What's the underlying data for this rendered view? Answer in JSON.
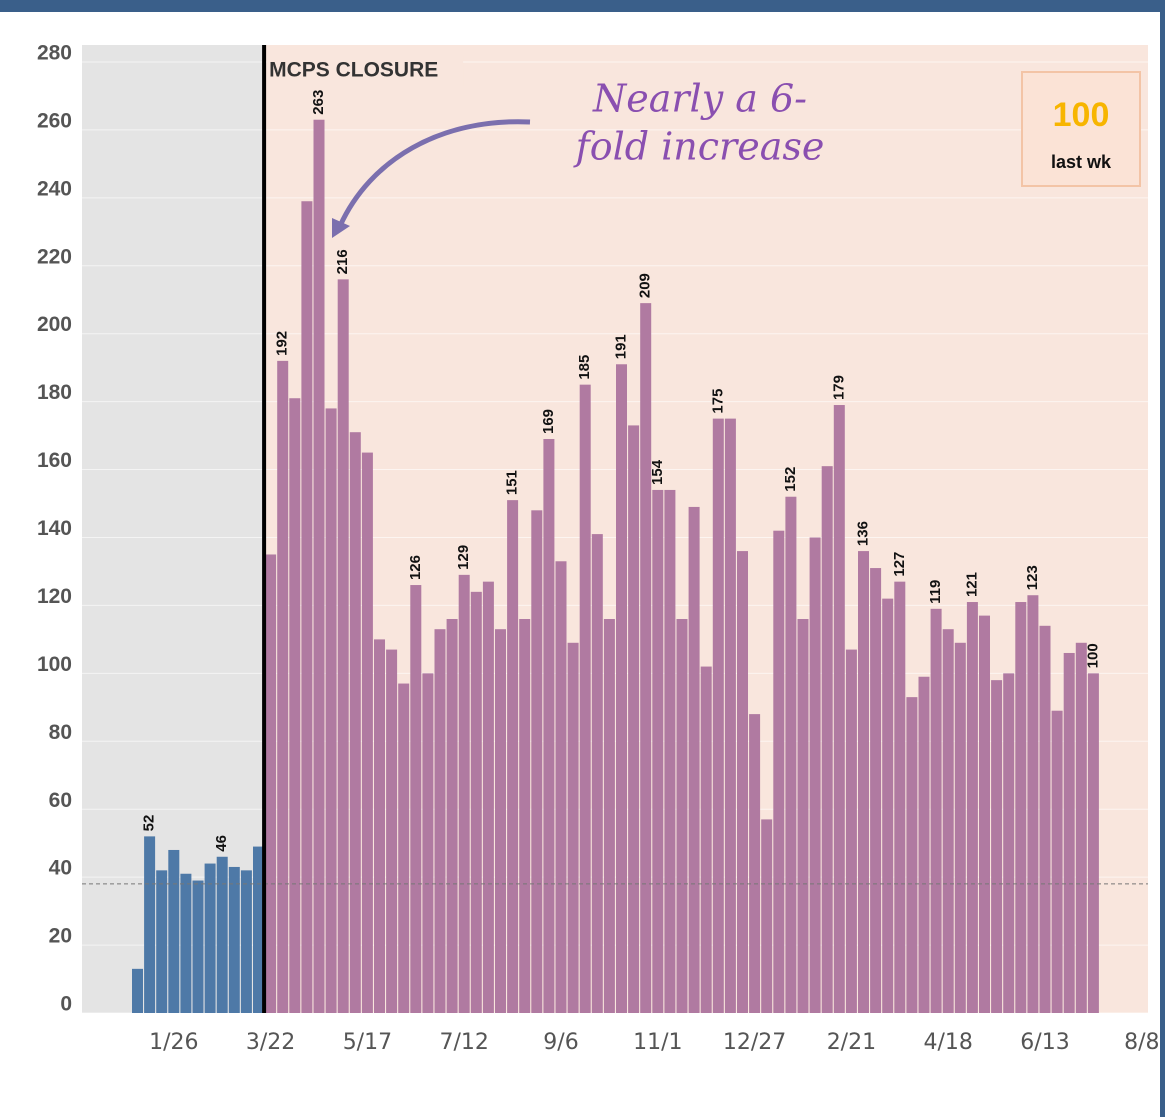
{
  "chart_data": {
    "type": "bar",
    "categories": [
      null,
      null,
      null,
      "1/26",
      null,
      null,
      null,
      null,
      null,
      null,
      null,
      "3/22",
      null,
      null,
      null,
      null,
      null,
      null,
      null,
      "5/17",
      null,
      null,
      null,
      null,
      null,
      null,
      null,
      "7/12",
      null,
      null,
      null,
      null,
      null,
      null,
      null,
      "9/6",
      null,
      null,
      null,
      null,
      null,
      null,
      null,
      "11/1",
      null,
      null,
      null,
      null,
      null,
      null,
      null,
      "12/27",
      null,
      null,
      null,
      null,
      null,
      null,
      null,
      "2/21",
      null,
      null,
      null,
      null,
      null,
      null,
      null,
      "4/18",
      null,
      null,
      null,
      null,
      null,
      null,
      null,
      "6/13",
      null,
      null,
      null,
      null,
      null,
      null,
      null,
      "8/8"
    ],
    "values": [
      13,
      52,
      42,
      48,
      41,
      39,
      44,
      46,
      43,
      42,
      49,
      135,
      192,
      181,
      239,
      263,
      178,
      216,
      171,
      165,
      110,
      107,
      97,
      126,
      100,
      113,
      116,
      129,
      124,
      127,
      113,
      151,
      116,
      148,
      169,
      133,
      109,
      185,
      141,
      116,
      191,
      173,
      209,
      154,
      154,
      116,
      149,
      102,
      175,
      175,
      136,
      88,
      57,
      142,
      152,
      116,
      140,
      161,
      179,
      107,
      136,
      131,
      122,
      127,
      93,
      99,
      119,
      113,
      109,
      121,
      117,
      98,
      100,
      121,
      123,
      114,
      89,
      106,
      109,
      100,
      null,
      null,
      null,
      null
    ],
    "value_labels": [
      null,
      "52",
      null,
      null,
      null,
      null,
      null,
      "46",
      null,
      null,
      null,
      null,
      "192",
      null,
      null,
      "263",
      null,
      "216",
      null,
      null,
      null,
      null,
      null,
      "126",
      null,
      null,
      null,
      "129",
      null,
      null,
      null,
      "151",
      null,
      null,
      "169",
      null,
      null,
      "185",
      null,
      null,
      "191",
      null,
      "209",
      "154",
      null,
      null,
      null,
      null,
      "175",
      null,
      null,
      null,
      null,
      null,
      "152",
      null,
      null,
      null,
      "179",
      null,
      "136",
      null,
      null,
      "127",
      null,
      null,
      "119",
      null,
      null,
      "121",
      null,
      null,
      null,
      null,
      "123",
      null,
      null,
      null,
      null,
      "100",
      null,
      null,
      null,
      null
    ],
    "colors": {
      "before": "#4e79a7",
      "after": "#b07aa1"
    },
    "ylim": [
      0,
      285
    ],
    "yticks": [
      0,
      20,
      40,
      60,
      80,
      100,
      120,
      140,
      160,
      180,
      200,
      220,
      240,
      260,
      280
    ],
    "grid": true,
    "reference_line": 38,
    "closure": {
      "index": 11,
      "label": "MCPS CLOSURE"
    },
    "callout": [
      "Nearly a 6-",
      "fold increase"
    ],
    "last_week": {
      "value": 100,
      "label": "last wk"
    }
  }
}
